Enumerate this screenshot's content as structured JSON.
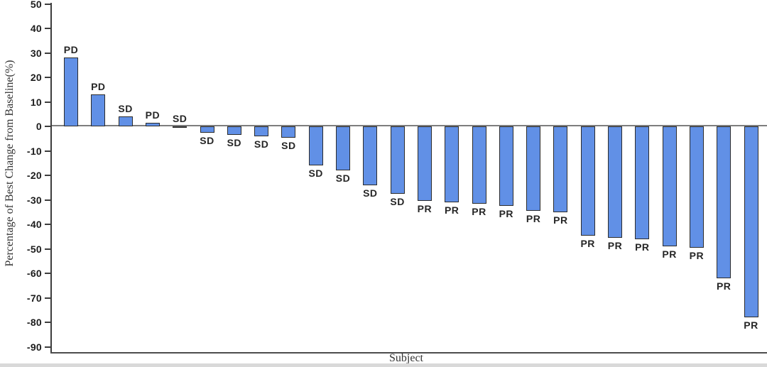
{
  "page": {
    "background_color": "#ffffff",
    "edge_band_color": "#d9d9d9"
  },
  "chart_data": {
    "type": "bar",
    "subtype": "waterfall",
    "title": "",
    "xlabel": "Subject",
    "ylabel": "Percentage of Best Change from Baseline(%)",
    "ylim": [
      -90,
      50
    ],
    "yticks": [
      50,
      40,
      30,
      20,
      10,
      0,
      -10,
      -20,
      -30,
      -40,
      -50,
      -60,
      -70,
      -80,
      -90
    ],
    "grid": false,
    "legend": false,
    "x_tick_labels_shown": false,
    "colors": {
      "bar_fill": "#6190E6",
      "bar_border": "#2c2c2c",
      "zero_line": "#7d7d7d",
      "axis_line": "#3d3d3d",
      "text": "#262626"
    },
    "bars": [
      {
        "response": "PD",
        "value": 28
      },
      {
        "response": "PD",
        "value": 13
      },
      {
        "response": "SD",
        "value": 4
      },
      {
        "response": "PD",
        "value": 1.5
      },
      {
        "response": "SD",
        "value": -0.5
      },
      {
        "response": "SD",
        "value": -2.5
      },
      {
        "response": "SD",
        "value": -3.5
      },
      {
        "response": "SD",
        "value": -4
      },
      {
        "response": "SD",
        "value": -4.5
      },
      {
        "response": "SD",
        "value": -16
      },
      {
        "response": "SD",
        "value": -18
      },
      {
        "response": "SD",
        "value": -24
      },
      {
        "response": "SD",
        "value": -27.5
      },
      {
        "response": "PR",
        "value": -30.5
      },
      {
        "response": "PR",
        "value": -31
      },
      {
        "response": "PR",
        "value": -31.5
      },
      {
        "response": "PR",
        "value": -32.5
      },
      {
        "response": "PR",
        "value": -34.5
      },
      {
        "response": "PR",
        "value": -35
      },
      {
        "response": "PR",
        "value": -44.5
      },
      {
        "response": "PR",
        "value": -45.5
      },
      {
        "response": "PR",
        "value": -46
      },
      {
        "response": "PR",
        "value": -49
      },
      {
        "response": "PR",
        "value": -49.5
      },
      {
        "response": "PR",
        "value": -62
      },
      {
        "response": "PR",
        "value": -78
      }
    ]
  }
}
